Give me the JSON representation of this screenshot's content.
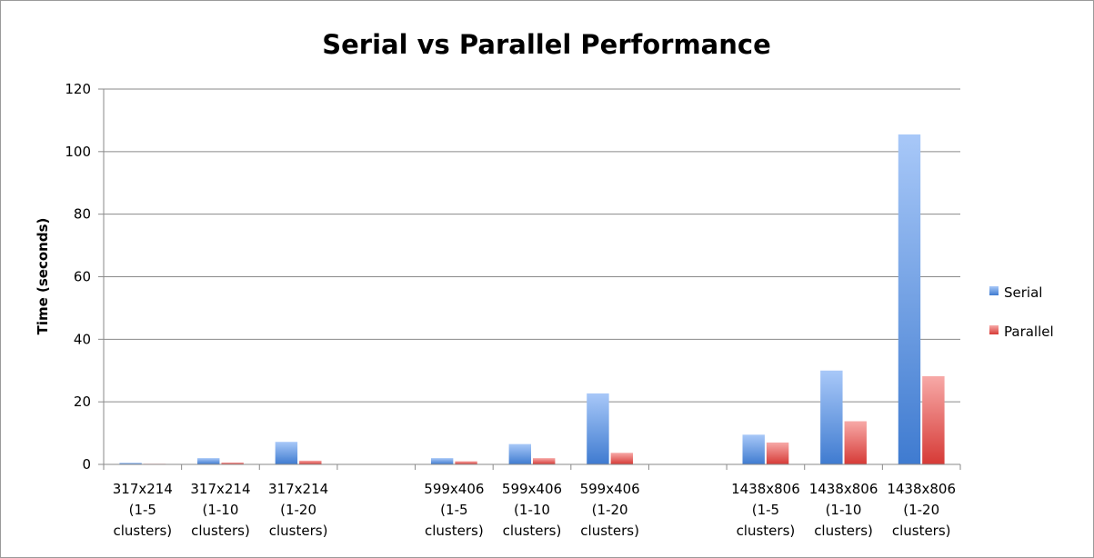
{
  "chart_data": {
    "type": "bar",
    "title": "Serial vs Parallel Performance",
    "xlabel": "",
    "ylabel": "Time (seconds)",
    "ylim": [
      0,
      120
    ],
    "yticks": [
      0,
      20,
      40,
      60,
      80,
      100,
      120
    ],
    "grid": true,
    "legend_position": "right",
    "categories": [
      [
        "317x214",
        "(1-5",
        "clusters)"
      ],
      [
        "317x214",
        "(1-10",
        "clusters)"
      ],
      [
        "317x214",
        "(1-20",
        "clusters)"
      ],
      [
        "",
        "",
        ""
      ],
      [
        "599x406",
        "(1-5",
        "clusters)"
      ],
      [
        "599x406",
        "(1-10",
        "clusters)"
      ],
      [
        "599x406",
        "(1-20",
        "clusters)"
      ],
      [
        "",
        "",
        ""
      ],
      [
        "1438x806",
        "(1-5",
        "clusters)"
      ],
      [
        "1438x806",
        "(1-10",
        "clusters)"
      ],
      [
        "1438x806",
        "(1-20",
        "clusters)"
      ]
    ],
    "series": [
      {
        "name": "Serial",
        "color": "#4F81BD",
        "light_color": "#9DC0F5",
        "values": [
          0.5,
          2,
          7.2,
          null,
          2,
          6.5,
          22.7,
          null,
          9.5,
          30,
          105.5
        ]
      },
      {
        "name": "Parallel",
        "color": "#D9403C",
        "light_color": "#F5A3A1",
        "values": [
          0.2,
          0.6,
          1.2,
          null,
          1,
          2,
          3.7,
          null,
          7,
          13.8,
          28.2
        ]
      }
    ]
  }
}
